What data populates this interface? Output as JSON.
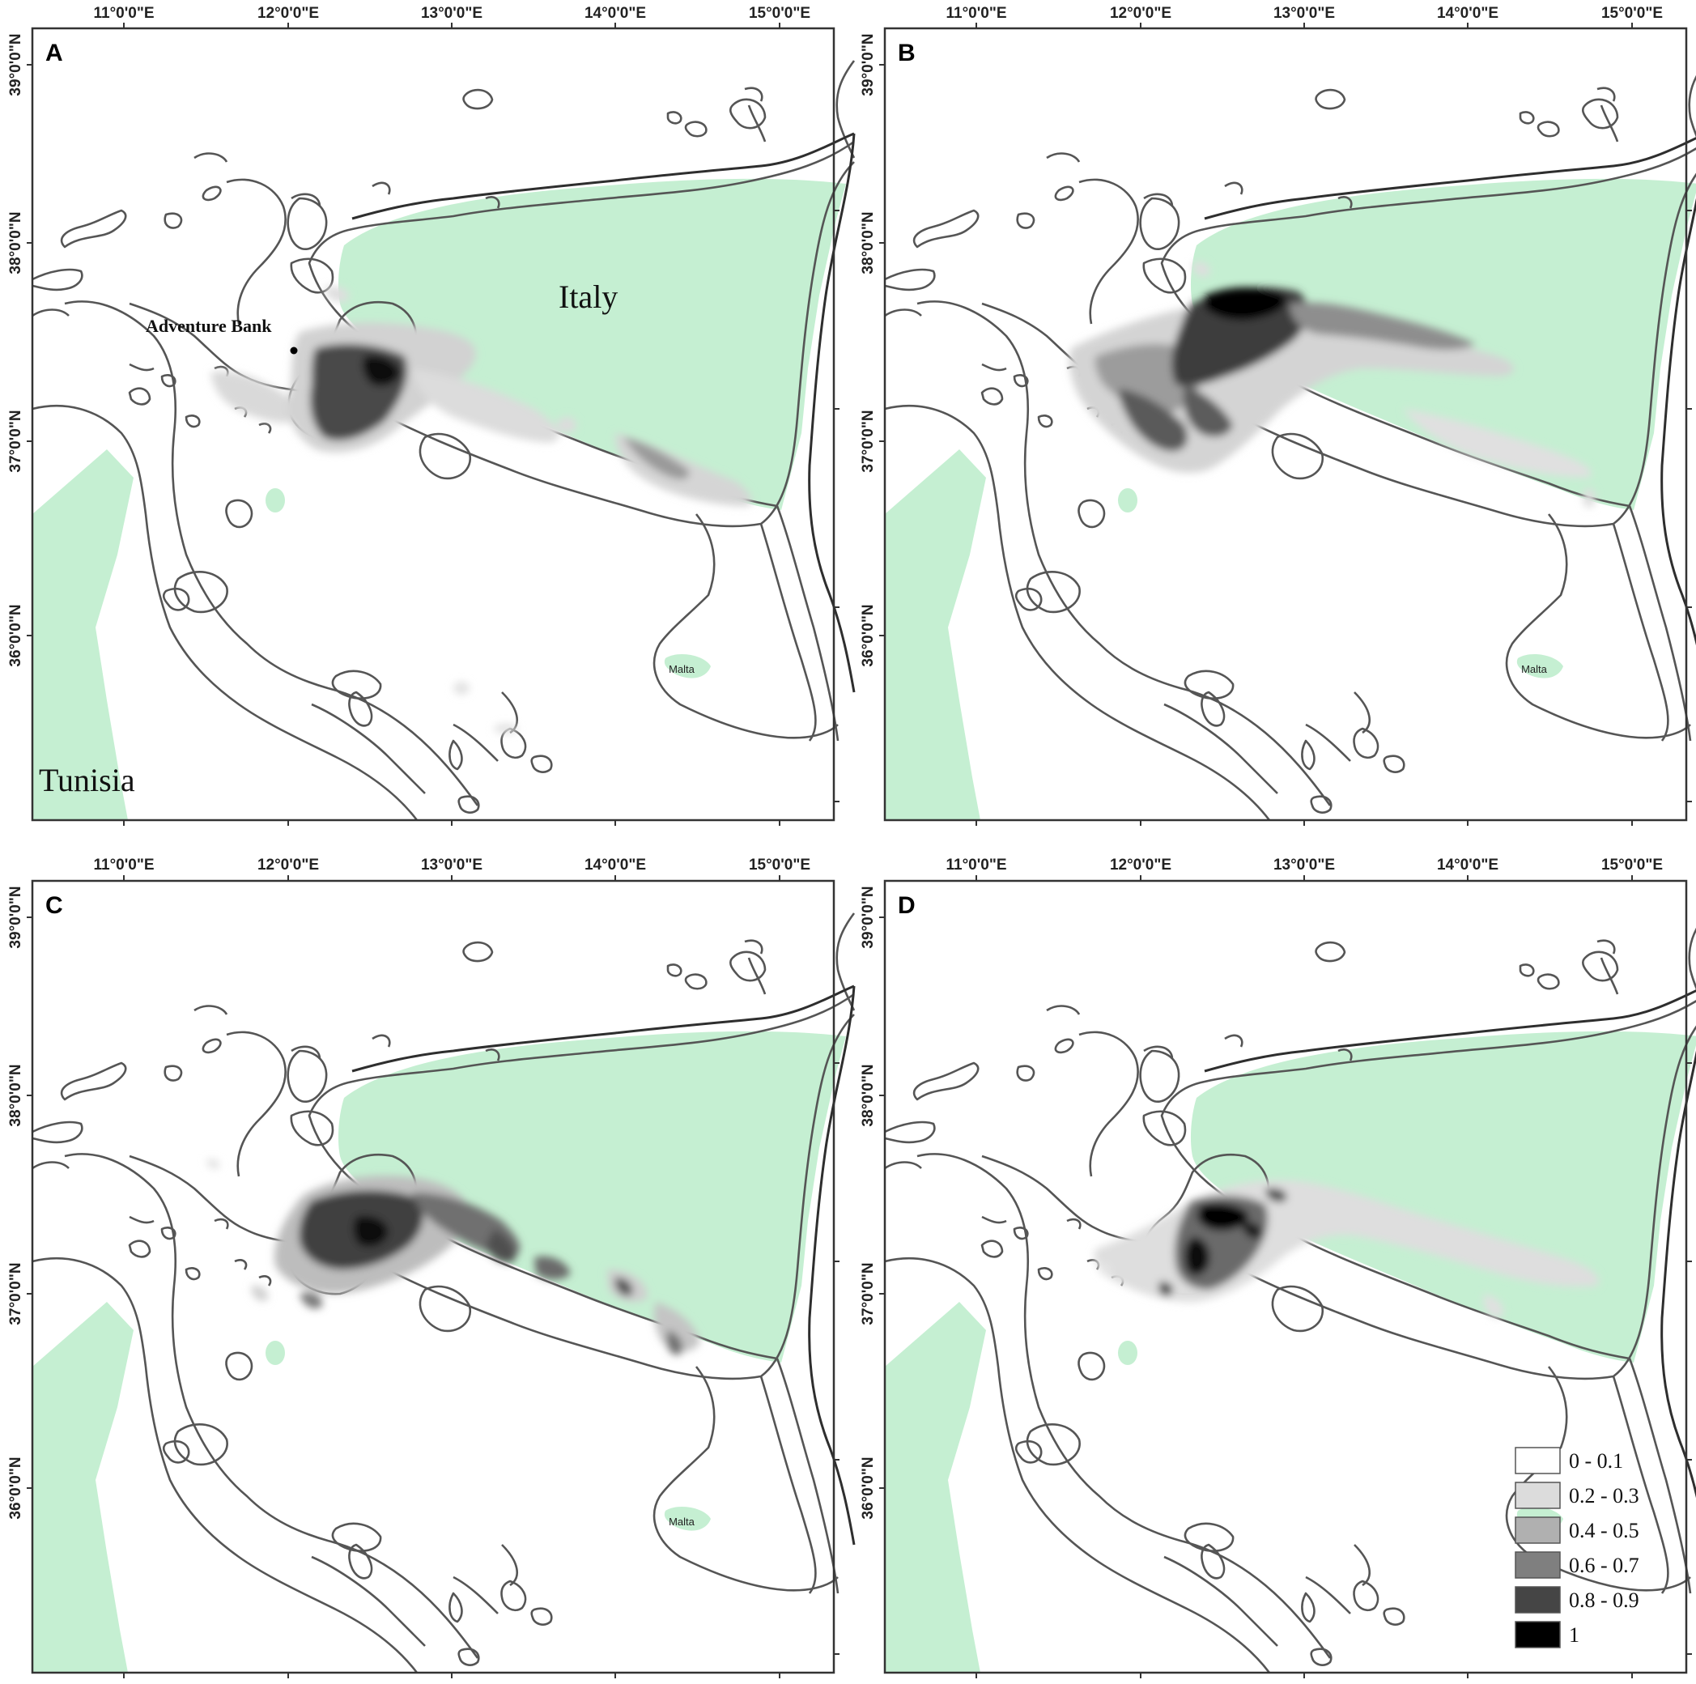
{
  "lon_labels": [
    "11°0'0\"E",
    "12°0'0\"E",
    "13°0'0\"E",
    "14°0'0\"E",
    "15°0'0\"E"
  ],
  "lat_labels": [
    "39°0'0\"N",
    "38°0'0\"N",
    "37°0'0\"N",
    "36°0'0\"N"
  ],
  "panels": [
    {
      "letter": "A"
    },
    {
      "letter": "B"
    },
    {
      "letter": "C"
    },
    {
      "letter": "D"
    }
  ],
  "places": {
    "italy": "Italy",
    "tunisia": "Tunisia",
    "malta": "Malta",
    "adventure_bank": "Adventure Bank"
  },
  "legend": [
    {
      "label": "0 - 0.1",
      "color": "#ffffff"
    },
    {
      "label": "0.2 - 0.3",
      "color": "#dcdcdc"
    },
    {
      "label": "0.4 - 0.5",
      "color": "#b0b0b0"
    },
    {
      "label": "0.6 - 0.7",
      "color": "#7f7f7f"
    },
    {
      "label": "0.8 - 0.9",
      "color": "#454545"
    },
    {
      "label": "1",
      "color": "#000000"
    }
  ],
  "colors": {
    "land": "#c5efd2",
    "contour": "#555555",
    "frame": "#333333"
  }
}
